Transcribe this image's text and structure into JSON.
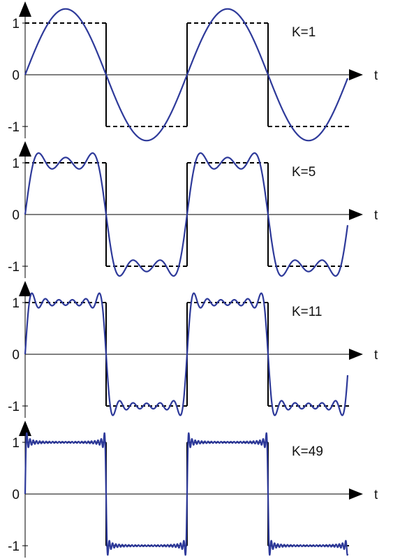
{
  "colors": {
    "approximation": "#2e3a9a",
    "square_wave": "#000000",
    "axis": "#000000",
    "background": "#ffffff"
  },
  "chart_data": [
    {
      "type": "line",
      "label": "K=1",
      "x_axis_label": "t",
      "y_ticks": [
        "1",
        "0",
        "-1"
      ],
      "harmonics_K": 1,
      "periods_shown": 2,
      "ylim": [
        -1.3,
        1.3
      ],
      "series": [
        {
          "kind": "fourier_partial_sum",
          "style": "solid",
          "color": "approximation"
        },
        {
          "kind": "square_wave",
          "style": "dashed",
          "color": "square_wave",
          "values": [
            1,
            -1,
            1,
            -1
          ]
        }
      ]
    },
    {
      "type": "line",
      "label": "K=5",
      "x_axis_label": "t",
      "y_ticks": [
        "1",
        "0",
        "-1"
      ],
      "harmonics_K": 5,
      "periods_shown": 2,
      "ylim": [
        -1.3,
        1.3
      ],
      "series": [
        {
          "kind": "fourier_partial_sum",
          "style": "solid",
          "color": "approximation"
        },
        {
          "kind": "square_wave",
          "style": "dashed",
          "color": "square_wave",
          "values": [
            1,
            -1,
            1,
            -1
          ]
        }
      ]
    },
    {
      "type": "line",
      "label": "K=11",
      "x_axis_label": "t",
      "y_ticks": [
        "1",
        "0",
        "-1"
      ],
      "harmonics_K": 11,
      "periods_shown": 2,
      "ylim": [
        -1.3,
        1.3
      ],
      "series": [
        {
          "kind": "fourier_partial_sum",
          "style": "solid",
          "color": "approximation"
        },
        {
          "kind": "square_wave",
          "style": "dashed",
          "color": "square_wave",
          "values": [
            1,
            -1,
            1,
            -1
          ]
        }
      ]
    },
    {
      "type": "line",
      "label": "K=49",
      "x_axis_label": "t",
      "y_ticks": [
        "1",
        "0",
        "-1"
      ],
      "harmonics_K": 49,
      "periods_shown": 2,
      "ylim": [
        -1.3,
        1.3
      ],
      "series": [
        {
          "kind": "fourier_partial_sum",
          "style": "solid",
          "color": "approximation"
        },
        {
          "kind": "square_wave",
          "style": "dashed",
          "color": "square_wave",
          "values": [
            1,
            -1,
            1,
            -1
          ]
        }
      ]
    }
  ]
}
